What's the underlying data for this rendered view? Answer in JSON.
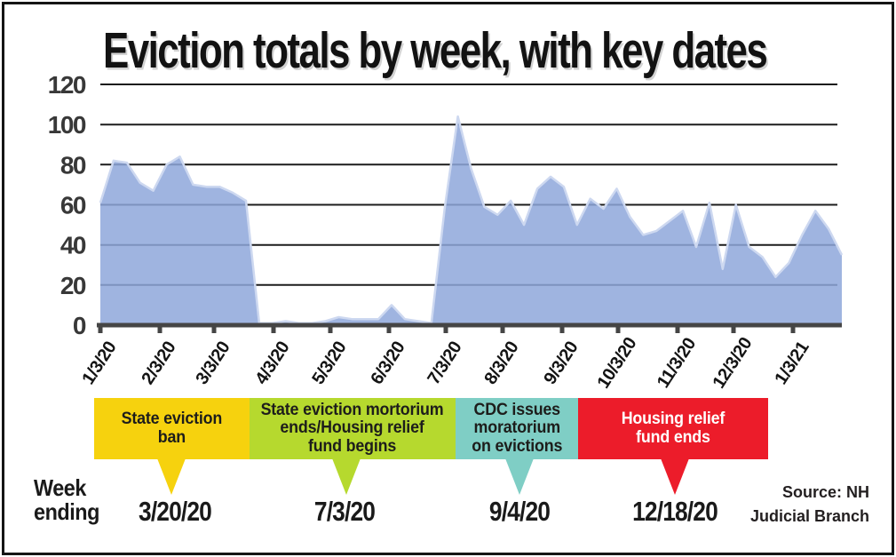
{
  "chart_data": {
    "type": "area",
    "title": "Eviction totals by week, with key dates",
    "x_tick_labels": [
      "1/3/20",
      "2/3/20",
      "3/3/20",
      "4/3/20",
      "5/3/20",
      "6/3/20",
      "7/3/20",
      "8/3/20",
      "9/3/20",
      "10/3/20",
      "11/3/20",
      "12/3/20",
      "1/3/21"
    ],
    "y_ticks": [
      120,
      100,
      80,
      60,
      40,
      20,
      0
    ],
    "ylim": [
      0,
      120
    ],
    "grid": "horizontal",
    "x_unit": "week",
    "values": [
      61,
      82,
      81,
      71,
      67,
      80,
      84,
      70,
      69,
      69,
      66,
      62,
      1,
      1,
      2,
      1,
      1,
      2,
      4,
      3,
      3,
      3,
      10,
      3,
      2,
      1,
      58,
      104,
      78,
      59,
      55,
      62,
      50,
      68,
      74,
      69,
      50,
      63,
      58,
      68,
      54,
      45,
      47,
      52,
      57,
      39,
      61,
      28,
      60,
      39,
      34,
      24,
      31,
      45,
      57,
      48,
      35
    ],
    "area_color": "#8ea7da",
    "area_edge_color": "#cdd8f0",
    "gridline_color": "#1c1c1c",
    "axis_color": "#454545"
  },
  "callouts": [
    {
      "label_lines": [
        "State eviction",
        "ban"
      ],
      "date": "3/20/20",
      "color": "#f6d20e",
      "text_color": "#1d1d1b"
    },
    {
      "label_lines": [
        "State eviction mortorium",
        "ends/Housing relief",
        "fund begins"
      ],
      "date": "7/3/20",
      "color": "#b6d92e",
      "text_color": "#1d1d1b"
    },
    {
      "label_lines": [
        "CDC issues",
        "moratorium",
        "on evictions"
      ],
      "date": "9/4/20",
      "color": "#7fcec5",
      "text_color": "#1d1d1b"
    },
    {
      "label_lines": [
        "Housing relief",
        "fund ends"
      ],
      "date": "12/18/20",
      "color": "#ec1c2a",
      "text_color": "#ffffff"
    }
  ],
  "axis_label": {
    "week_ending_lines": [
      "Week",
      "ending"
    ]
  },
  "source": {
    "lines": [
      "Source: NH",
      "Judicial Branch"
    ]
  }
}
